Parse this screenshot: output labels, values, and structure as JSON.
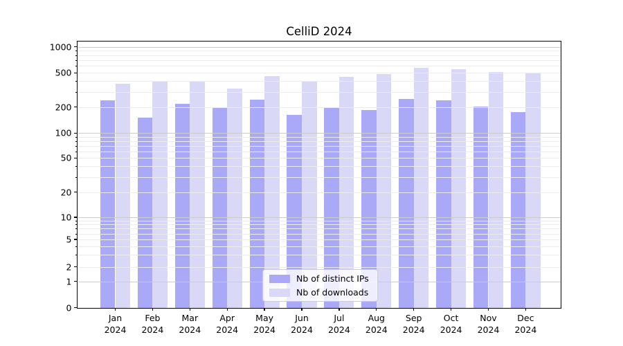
{
  "window": {
    "background": "#ffffff"
  },
  "chart_data": {
    "type": "bar",
    "title": "CelliD 2024",
    "categories": [
      "Jan",
      "Feb",
      "Mar",
      "Apr",
      "May",
      "Jun",
      "Jul",
      "Aug",
      "Sep",
      "Oct",
      "Nov",
      "Dec"
    ],
    "x_year_label": "2024",
    "series": [
      {
        "name": "Nb of distinct IPs",
        "color": "#a9a9f7",
        "values": [
          240,
          152,
          219,
          197,
          246,
          164,
          194,
          184,
          251,
          241,
          204,
          176
        ]
      },
      {
        "name": "Nb of downloads",
        "color": "#d9d9f7",
        "values": [
          371,
          398,
          392,
          331,
          462,
          396,
          452,
          481,
          568,
          551,
          516,
          504
        ]
      }
    ],
    "xlabel": "",
    "ylabel": "",
    "yscale": "symlog",
    "yticks": [
      0,
      1,
      2,
      5,
      10,
      20,
      50,
      100,
      200,
      500,
      1000
    ],
    "ylim": [
      0,
      1200
    ],
    "grid": true,
    "grid_minor": true,
    "legend_position": "lower center"
  }
}
